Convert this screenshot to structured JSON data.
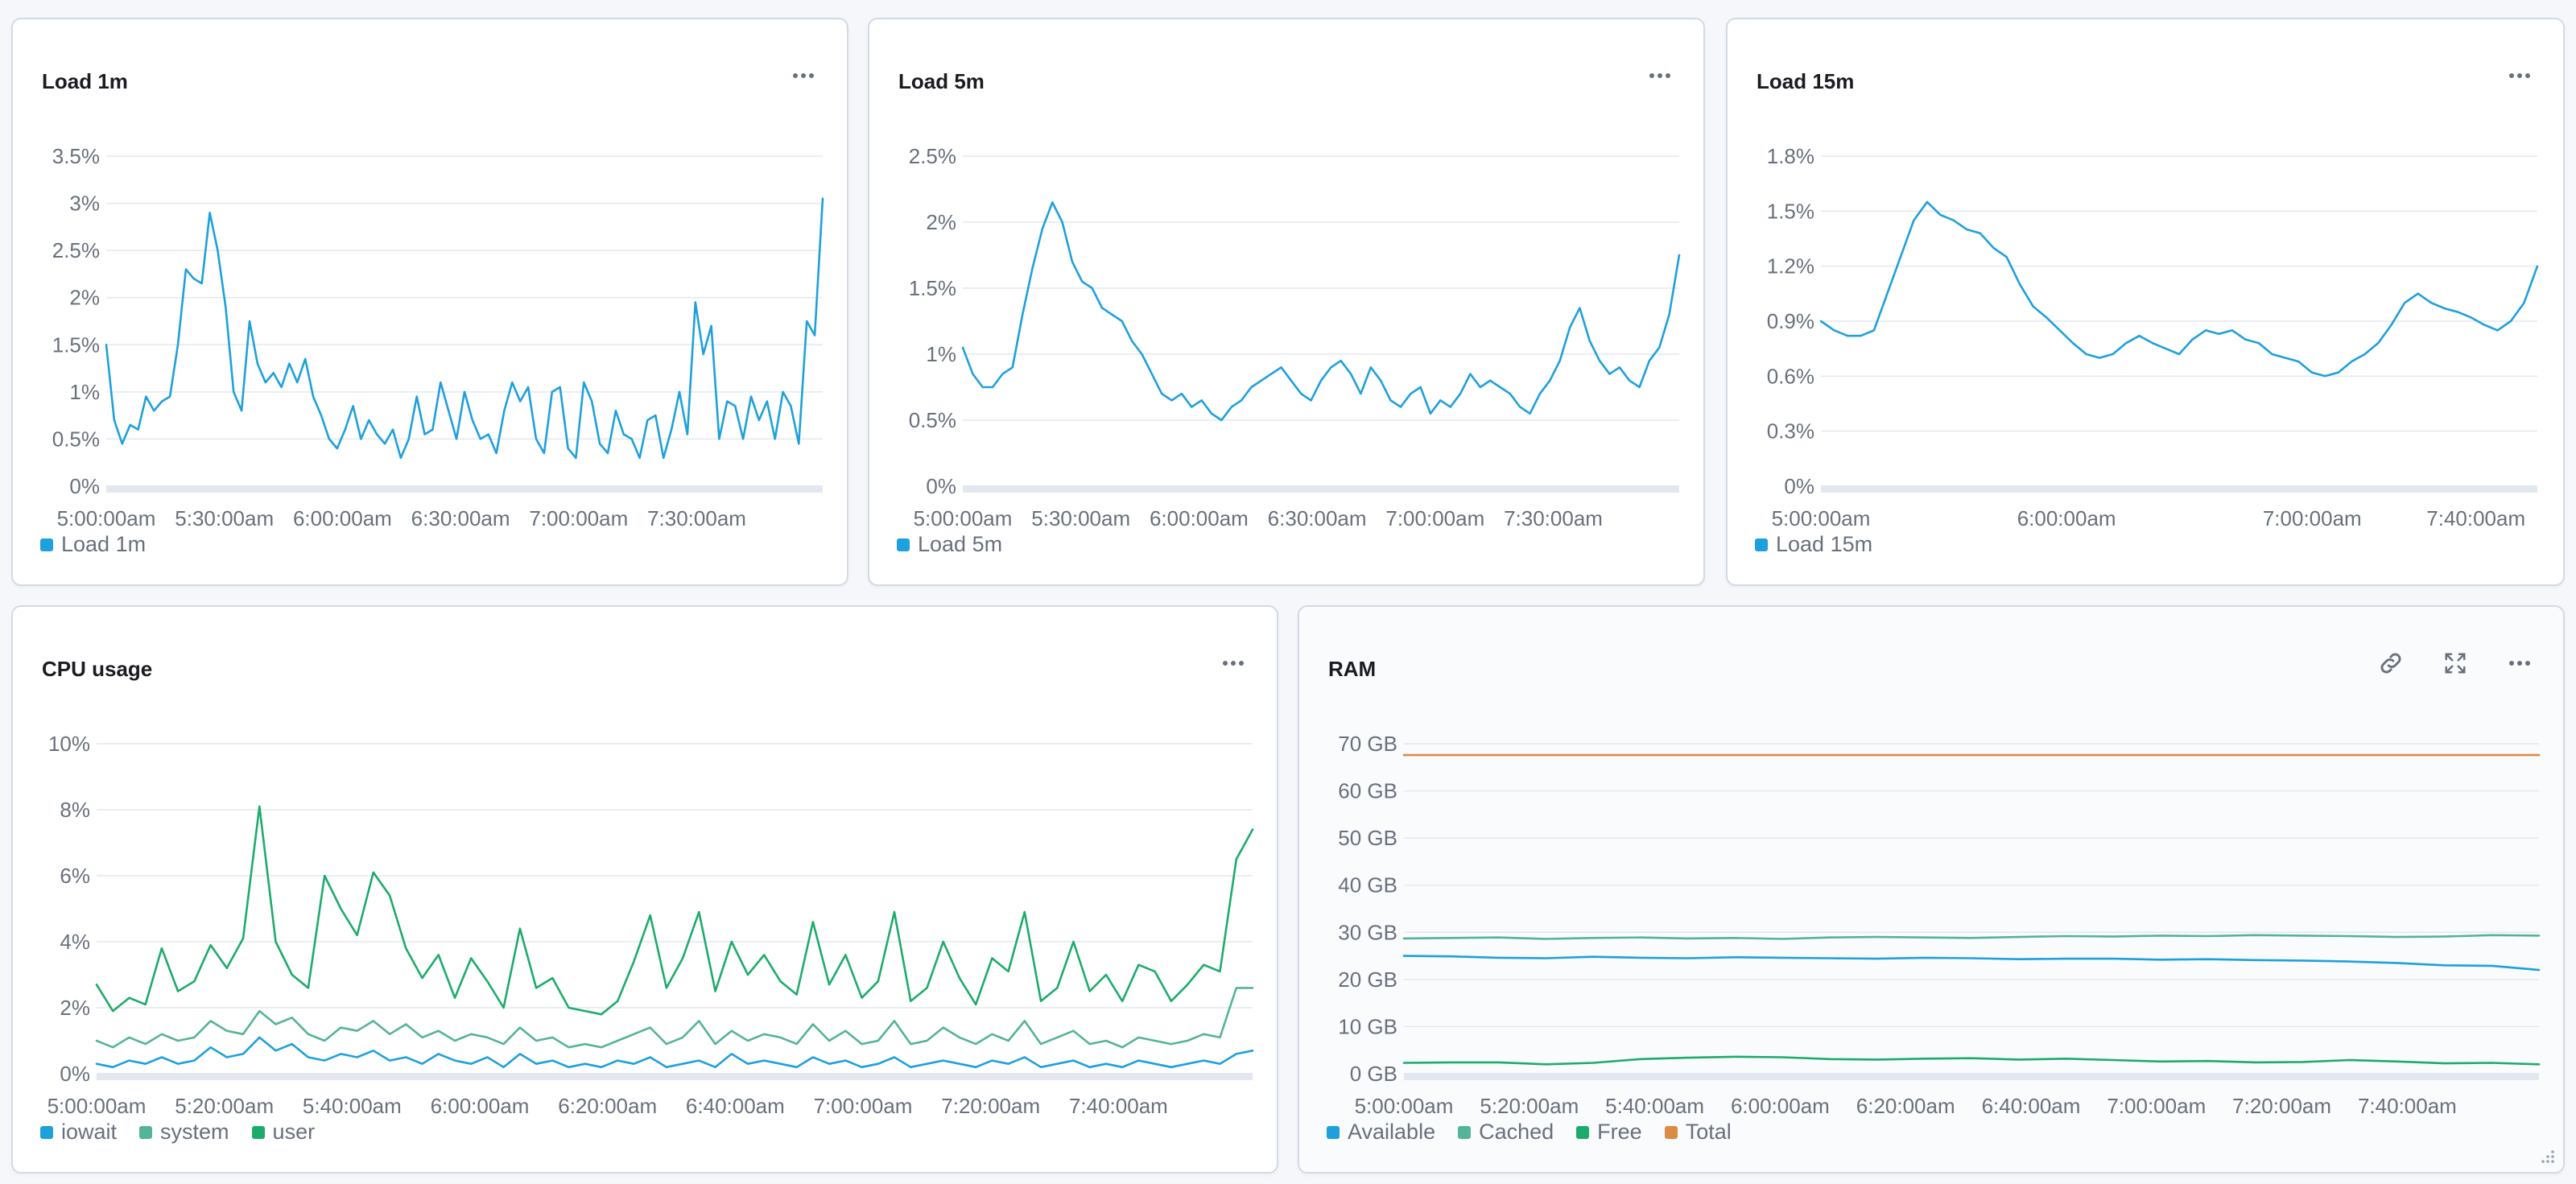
{
  "panels": {
    "load1": {
      "title": "Load 1m",
      "chart_data": {
        "type": "line",
        "title": "Load 1m",
        "y_ticks": [
          "0%",
          "0.5%",
          "1%",
          "1.5%",
          "2%",
          "2.5%",
          "3%",
          "3.5%"
        ],
        "ylim": [
          0,
          3.5
        ],
        "x_ticks": [
          "5:00:00am",
          "5:30:00am",
          "6:00:00am",
          "6:30:00am",
          "7:00:00am",
          "7:30:00am"
        ],
        "x_tick_minutes": [
          0,
          30,
          60,
          90,
          120,
          150
        ],
        "x_range_minutes": [
          0,
          182
        ],
        "series": [
          {
            "name": "Load 1m",
            "color": "#1ea0dc",
            "values": [
              1.5,
              0.7,
              0.45,
              0.65,
              0.6,
              0.95,
              0.8,
              0.9,
              0.95,
              1.5,
              2.3,
              2.2,
              2.15,
              2.9,
              2.5,
              1.9,
              1.0,
              0.8,
              1.75,
              1.3,
              1.1,
              1.2,
              1.05,
              1.3,
              1.1,
              1.35,
              0.95,
              0.75,
              0.5,
              0.4,
              0.6,
              0.85,
              0.5,
              0.7,
              0.55,
              0.45,
              0.6,
              0.3,
              0.5,
              0.95,
              0.55,
              0.6,
              1.1,
              0.8,
              0.5,
              1.0,
              0.7,
              0.5,
              0.55,
              0.35,
              0.8,
              1.1,
              0.9,
              1.05,
              0.5,
              0.35,
              1.0,
              1.05,
              0.4,
              0.3,
              1.1,
              0.9,
              0.45,
              0.35,
              0.8,
              0.55,
              0.5,
              0.3,
              0.7,
              0.75,
              0.3,
              0.6,
              1.0,
              0.55,
              1.95,
              1.4,
              1.7,
              0.5,
              0.9,
              0.85,
              0.5,
              0.95,
              0.7,
              0.9,
              0.5,
              1.0,
              0.85,
              0.45,
              1.75,
              1.6,
              3.05
            ]
          }
        ]
      },
      "legend": [
        {
          "label": "Load 1m",
          "color": "#1ea0dc"
        }
      ]
    },
    "load5": {
      "title": "Load 5m",
      "chart_data": {
        "type": "line",
        "title": "Load 5m",
        "y_ticks": [
          "0%",
          "0.5%",
          "1%",
          "1.5%",
          "2%",
          "2.5%"
        ],
        "ylim": [
          0,
          2.5
        ],
        "x_ticks": [
          "5:00:00am",
          "5:30:00am",
          "6:00:00am",
          "6:30:00am",
          "7:00:00am",
          "7:30:00am"
        ],
        "x_tick_minutes": [
          0,
          30,
          60,
          90,
          120,
          150
        ],
        "x_range_minutes": [
          0,
          182
        ],
        "series": [
          {
            "name": "Load 5m",
            "color": "#1ea0dc",
            "values": [
              1.05,
              0.85,
              0.75,
              0.75,
              0.85,
              0.9,
              1.3,
              1.65,
              1.95,
              2.15,
              2.0,
              1.7,
              1.55,
              1.5,
              1.35,
              1.3,
              1.25,
              1.1,
              1.0,
              0.85,
              0.7,
              0.65,
              0.7,
              0.6,
              0.65,
              0.55,
              0.5,
              0.6,
              0.65,
              0.75,
              0.8,
              0.85,
              0.9,
              0.8,
              0.7,
              0.65,
              0.8,
              0.9,
              0.95,
              0.85,
              0.7,
              0.9,
              0.8,
              0.65,
              0.6,
              0.7,
              0.75,
              0.55,
              0.65,
              0.6,
              0.7,
              0.85,
              0.75,
              0.8,
              0.75,
              0.7,
              0.6,
              0.55,
              0.7,
              0.8,
              0.95,
              1.2,
              1.35,
              1.1,
              0.95,
              0.85,
              0.9,
              0.8,
              0.75,
              0.95,
              1.05,
              1.3,
              1.75
            ]
          }
        ]
      },
      "legend": [
        {
          "label": "Load 5m",
          "color": "#1ea0dc"
        }
      ]
    },
    "load15": {
      "title": "Load 15m",
      "chart_data": {
        "type": "line",
        "title": "Load 15m",
        "y_ticks": [
          "0%",
          "0.3%",
          "0.6%",
          "0.9%",
          "1.2%",
          "1.5%",
          "1.8%"
        ],
        "ylim": [
          0,
          1.8
        ],
        "x_ticks": [
          "5:00:00am",
          "6:00:00am",
          "7:00:00am",
          "7:40:00am"
        ],
        "x_tick_minutes": [
          0,
          60,
          120,
          160
        ],
        "x_range_minutes": [
          0,
          175
        ],
        "series": [
          {
            "name": "Load 15m",
            "color": "#1ea0dc",
            "values": [
              0.9,
              0.85,
              0.82,
              0.82,
              0.85,
              1.05,
              1.25,
              1.45,
              1.55,
              1.48,
              1.45,
              1.4,
              1.38,
              1.3,
              1.25,
              1.1,
              0.98,
              0.92,
              0.85,
              0.78,
              0.72,
              0.7,
              0.72,
              0.78,
              0.82,
              0.78,
              0.75,
              0.72,
              0.8,
              0.85,
              0.83,
              0.85,
              0.8,
              0.78,
              0.72,
              0.7,
              0.68,
              0.62,
              0.6,
              0.62,
              0.68,
              0.72,
              0.78,
              0.88,
              1.0,
              1.05,
              1.0,
              0.97,
              0.95,
              0.92,
              0.88,
              0.85,
              0.9,
              1.0,
              1.2
            ]
          }
        ]
      },
      "legend": [
        {
          "label": "Load 15m",
          "color": "#1ea0dc"
        }
      ]
    },
    "cpu": {
      "title": "CPU usage",
      "chart_data": {
        "type": "line",
        "title": "CPU usage",
        "y_ticks": [
          "0%",
          "2%",
          "4%",
          "6%",
          "8%",
          "10%"
        ],
        "ylim": [
          0,
          10
        ],
        "x_ticks": [
          "5:00:00am",
          "5:20:00am",
          "5:40:00am",
          "6:00:00am",
          "6:20:00am",
          "6:40:00am",
          "7:00:00am",
          "7:20:00am",
          "7:40:00am"
        ],
        "x_tick_minutes": [
          0,
          20,
          40,
          60,
          80,
          100,
          120,
          140,
          160
        ],
        "x_range_minutes": [
          0,
          181
        ],
        "series": [
          {
            "name": "iowait",
            "color": "#1ea0dc",
            "values": [
              0.3,
              0.2,
              0.4,
              0.3,
              0.5,
              0.3,
              0.4,
              0.8,
              0.5,
              0.6,
              1.1,
              0.7,
              0.9,
              0.5,
              0.4,
              0.6,
              0.5,
              0.7,
              0.4,
              0.5,
              0.3,
              0.6,
              0.4,
              0.3,
              0.5,
              0.2,
              0.6,
              0.3,
              0.4,
              0.2,
              0.3,
              0.2,
              0.4,
              0.3,
              0.5,
              0.2,
              0.3,
              0.4,
              0.2,
              0.6,
              0.3,
              0.4,
              0.3,
              0.2,
              0.5,
              0.3,
              0.4,
              0.2,
              0.3,
              0.5,
              0.2,
              0.3,
              0.4,
              0.3,
              0.2,
              0.4,
              0.3,
              0.5,
              0.2,
              0.3,
              0.4,
              0.2,
              0.3,
              0.2,
              0.4,
              0.3,
              0.2,
              0.3,
              0.4,
              0.3,
              0.6,
              0.7
            ]
          },
          {
            "name": "system",
            "color": "#54b399",
            "values": [
              1.0,
              0.8,
              1.1,
              0.9,
              1.2,
              1.0,
              1.1,
              1.6,
              1.3,
              1.2,
              1.9,
              1.5,
              1.7,
              1.2,
              1.0,
              1.4,
              1.3,
              1.6,
              1.2,
              1.5,
              1.1,
              1.3,
              1.0,
              1.2,
              1.1,
              0.9,
              1.4,
              1.0,
              1.1,
              0.8,
              0.9,
              0.8,
              1.0,
              1.2,
              1.4,
              0.9,
              1.1,
              1.6,
              0.9,
              1.3,
              1.0,
              1.2,
              1.1,
              0.9,
              1.5,
              1.0,
              1.3,
              0.9,
              1.0,
              1.6,
              0.9,
              1.0,
              1.4,
              1.1,
              0.9,
              1.2,
              1.0,
              1.6,
              0.9,
              1.1,
              1.3,
              0.9,
              1.0,
              0.8,
              1.1,
              1.0,
              0.9,
              1.0,
              1.2,
              1.1,
              2.6,
              2.6
            ]
          },
          {
            "name": "user",
            "color": "#1dab6b",
            "values": [
              2.7,
              1.9,
              2.3,
              2.1,
              3.8,
              2.5,
              2.8,
              3.9,
              3.2,
              4.1,
              8.1,
              4.0,
              3.0,
              2.6,
              6.0,
              5.0,
              4.2,
              6.1,
              5.4,
              3.8,
              2.9,
              3.6,
              2.3,
              3.5,
              2.8,
              2.0,
              4.4,
              2.6,
              2.9,
              2.0,
              1.9,
              1.8,
              2.2,
              3.4,
              4.8,
              2.6,
              3.5,
              4.9,
              2.5,
              4.0,
              3.0,
              3.6,
              2.8,
              2.4,
              4.6,
              2.7,
              3.6,
              2.3,
              2.8,
              4.9,
              2.2,
              2.6,
              4.0,
              2.9,
              2.1,
              3.5,
              3.1,
              4.9,
              2.2,
              2.6,
              4.0,
              2.5,
              3.0,
              2.2,
              3.3,
              3.1,
              2.2,
              2.7,
              3.3,
              3.1,
              6.5,
              7.4
            ]
          }
        ]
      },
      "legend": [
        {
          "label": "iowait",
          "color": "#1ea0dc"
        },
        {
          "label": "system",
          "color": "#54b399"
        },
        {
          "label": "user",
          "color": "#1dab6b"
        }
      ]
    },
    "ram": {
      "title": "RAM",
      "chart_data": {
        "type": "line",
        "title": "RAM",
        "y_ticks": [
          "0 GB",
          "10 GB",
          "20 GB",
          "30 GB",
          "40 GB",
          "50 GB",
          "60 GB",
          "70 GB"
        ],
        "ylim": [
          0,
          70
        ],
        "x_ticks": [
          "5:00:00am",
          "5:20:00am",
          "5:40:00am",
          "6:00:00am",
          "6:20:00am",
          "6:40:00am",
          "7:00:00am",
          "7:20:00am",
          "7:40:00am"
        ],
        "x_tick_minutes": [
          0,
          20,
          40,
          60,
          80,
          100,
          120,
          140,
          160
        ],
        "x_range_minutes": [
          0,
          181
        ],
        "series": [
          {
            "name": "Available",
            "color": "#1ea0dc",
            "values": [
              25.0,
              24.9,
              24.6,
              24.5,
              24.8,
              24.6,
              24.5,
              24.7,
              24.6,
              24.5,
              24.4,
              24.6,
              24.5,
              24.3,
              24.4,
              24.4,
              24.2,
              24.3,
              24.1,
              24.0,
              23.8,
              23.5,
              23.0,
              22.9,
              22.0
            ]
          },
          {
            "name": "Cached",
            "color": "#54b399",
            "values": [
              28.7,
              28.8,
              28.9,
              28.6,
              28.8,
              28.9,
              28.7,
              28.8,
              28.6,
              28.9,
              29.0,
              28.9,
              28.8,
              29.0,
              29.2,
              29.1,
              29.3,
              29.2,
              29.4,
              29.3,
              29.2,
              29.0,
              29.1,
              29.4,
              29.3
            ]
          },
          {
            "name": "Free",
            "color": "#1dab6b",
            "values": [
              2.3,
              2.4,
              2.4,
              2.0,
              2.3,
              3.1,
              3.4,
              3.6,
              3.5,
              3.1,
              3.0,
              3.2,
              3.3,
              3.0,
              3.2,
              2.9,
              2.6,
              2.7,
              2.4,
              2.5,
              2.9,
              2.6,
              2.2,
              2.3,
              2.0
            ]
          },
          {
            "name": "Total",
            "color": "#da8b45",
            "values": [
              67.6,
              67.6,
              67.6,
              67.6,
              67.6,
              67.6,
              67.6,
              67.6,
              67.6,
              67.6,
              67.6,
              67.6,
              67.6,
              67.6,
              67.6,
              67.6,
              67.6,
              67.6,
              67.6,
              67.6,
              67.6,
              67.6,
              67.6,
              67.6,
              67.6
            ]
          }
        ]
      },
      "legend": [
        {
          "label": "Available",
          "color": "#1ea0dc"
        },
        {
          "label": "Cached",
          "color": "#54b399"
        },
        {
          "label": "Free",
          "color": "#1dab6b"
        },
        {
          "label": "Total",
          "color": "#da8b45"
        }
      ]
    }
  }
}
